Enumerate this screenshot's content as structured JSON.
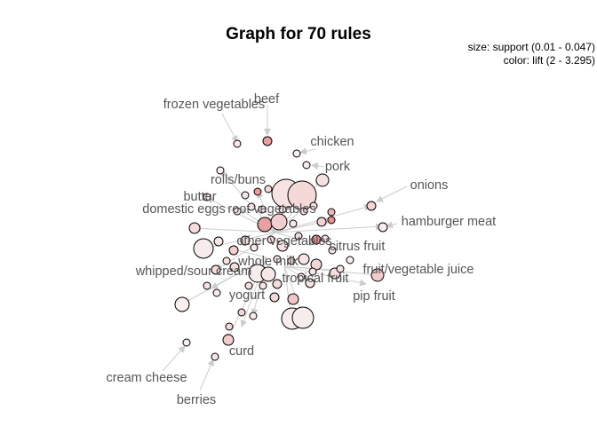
{
  "title": "Graph for 70 rules",
  "legend": {
    "size": "size: support (0.01 - 0.047)",
    "color": "color: lift (2 - 3.295)"
  },
  "labels": [
    "beef",
    "frozen vegetables",
    "chicken",
    "pork",
    "onions",
    "rolls/buns",
    "butter",
    "domestic eggs",
    "root vegetables",
    "hamburger meat",
    "other vegetables",
    "citrus fruit",
    "whole milk",
    "whipped/sour cream",
    "fruit/vegetable juice",
    "tropical fruit",
    "pip fruit",
    "yogurt",
    "curd",
    "cream cheese",
    "berries"
  ],
  "colors": {
    "edge": "#cccccc",
    "node_light": "#f7e6e6",
    "node_dark": "#e89a9a",
    "node_stroke": "#000000",
    "label": "#555555"
  }
}
